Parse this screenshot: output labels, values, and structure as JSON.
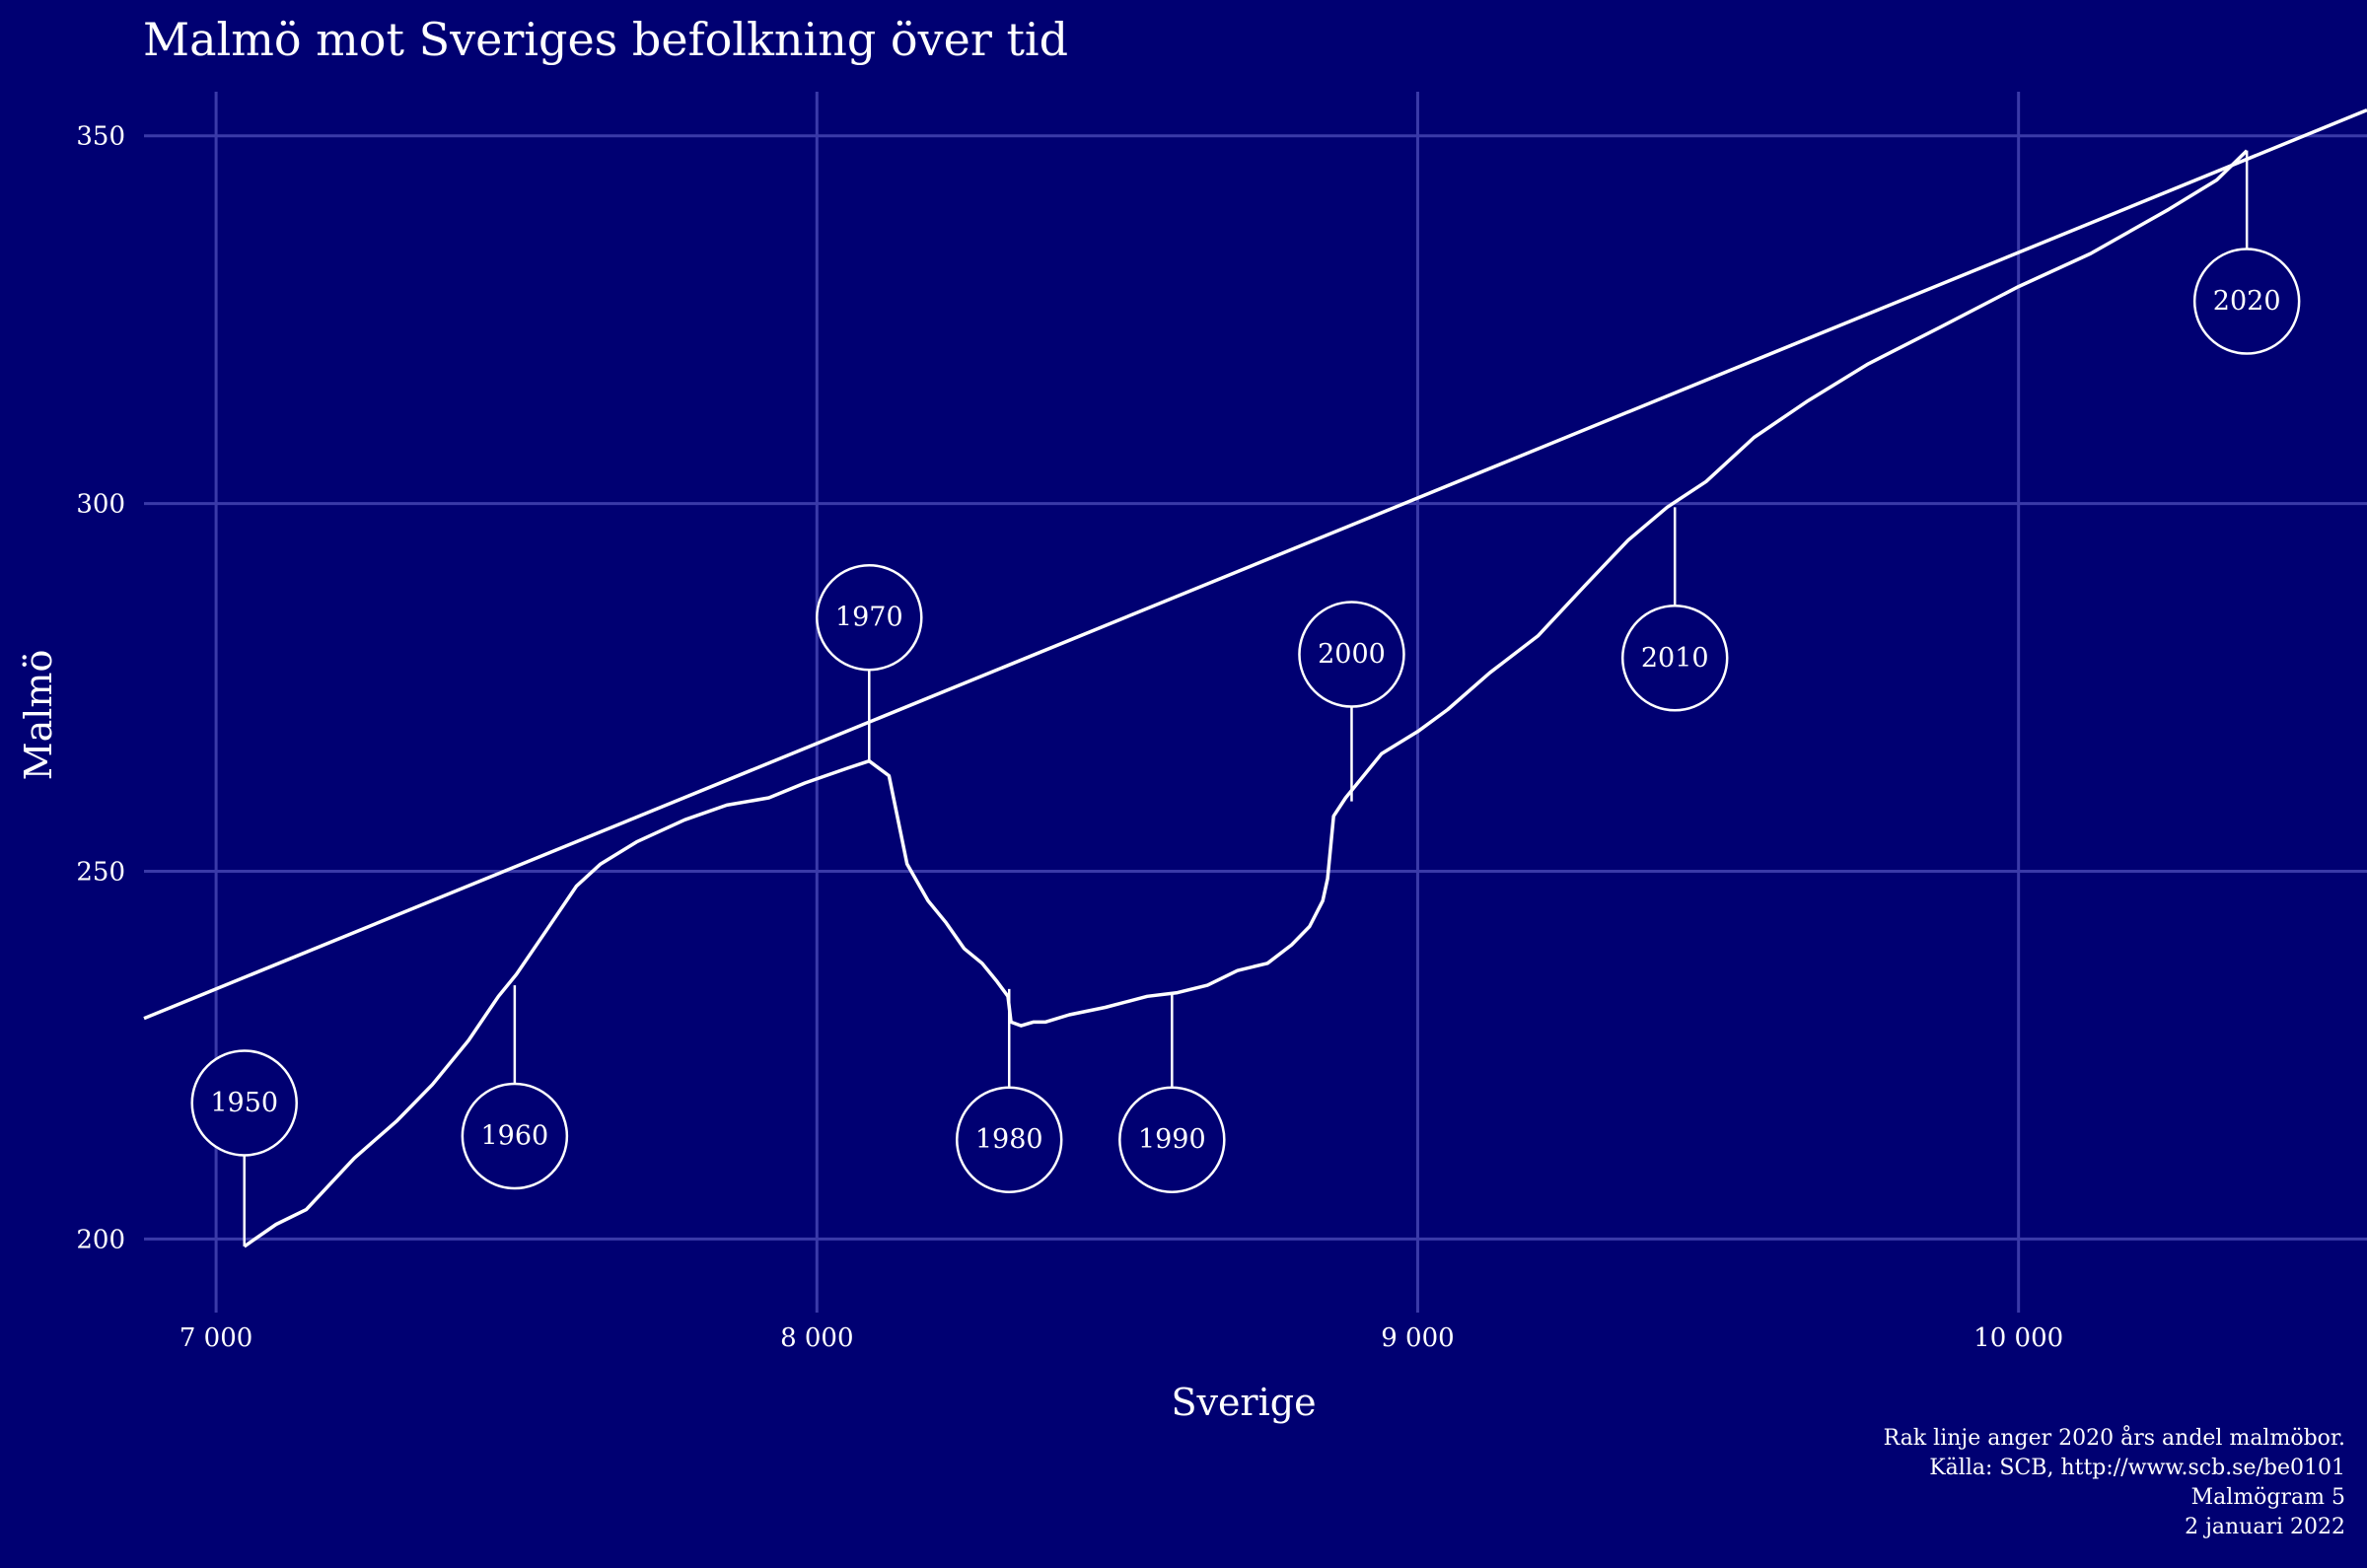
{
  "chart_data": {
    "type": "line",
    "title": "Malmö mot Sveriges befolkning över tid",
    "xlabel": "Sverige",
    "ylabel": "Malmö",
    "xlim": [
      6880,
      10580
    ],
    "ylim": [
      190,
      356
    ],
    "x_ticks": [
      7000,
      8000,
      9000,
      10000
    ],
    "x_tick_labels": [
      "7 000",
      "8 000",
      "9 000",
      "10 000"
    ],
    "y_ticks": [
      200,
      250,
      300,
      350
    ],
    "y_tick_labels": [
      "200",
      "250",
      "300",
      "350"
    ],
    "grid": true,
    "series": [
      {
        "x": [
          7047,
          7100,
          7150,
          7230,
          7300,
          7360,
          7420,
          7470,
          7500,
          7550,
          7600,
          7640,
          7700,
          7780,
          7850,
          7920,
          7980,
          8050,
          8087,
          8120,
          8150,
          8185,
          8215,
          8245,
          8275,
          8300,
          8318,
          8323,
          8340,
          8360,
          8380,
          8420,
          8480,
          8550,
          8600,
          8650,
          8700,
          8750,
          8790,
          8820,
          8842,
          8850,
          8860,
          8880,
          8940,
          9000,
          9050,
          9120,
          9200,
          9280,
          9350,
          9415,
          9480,
          9560,
          9650,
          9750,
          9870,
          10000,
          10120,
          10250,
          10330,
          10380
        ],
        "y": [
          199,
          202,
          204,
          211,
          216,
          221,
          227,
          233,
          236,
          242,
          248,
          251,
          254,
          257,
          259,
          260,
          262,
          264,
          265,
          263,
          251,
          246,
          243,
          239.5,
          237.5,
          235,
          233,
          229.5,
          229,
          229.5,
          229.5,
          230.5,
          231.5,
          233,
          233.5,
          234.5,
          236.5,
          237.5,
          240,
          242.5,
          246,
          249,
          257.5,
          260,
          266,
          269,
          272,
          277,
          282,
          289,
          295,
          299.5,
          303,
          309,
          314,
          319,
          324,
          329.5,
          334,
          340,
          344,
          348
        ]
      }
    ],
    "reference_line": {
      "x": [
        6880,
        10580
      ],
      "y": [
        230,
        353.5
      ]
    },
    "annotations": [
      {
        "label": "1950",
        "x": 7047,
        "y": 199,
        "ly": 218.5
      },
      {
        "label": "1960",
        "x": 7497,
        "y": 234.5,
        "ly": 214
      },
      {
        "label": "1970",
        "x": 8087,
        "y": 265,
        "ly": 284.5
      },
      {
        "label": "1980",
        "x": 8320,
        "y": 234,
        "ly": 213.5
      },
      {
        "label": "1990",
        "x": 8591,
        "y": 233.5,
        "ly": 213.5
      },
      {
        "label": "2000",
        "x": 8890,
        "y": 259.5,
        "ly": 279.5
      },
      {
        "label": "2010",
        "x": 9428,
        "y": 299.5,
        "ly": 279
      },
      {
        "label": "2020",
        "x": 10380,
        "y": 348,
        "ly": 327.5
      }
    ]
  },
  "caption": [
    "Rak linje anger 2020 års andel malmöbor.",
    "Källa: SCB, http://www.scb.se/be0101",
    "Malmögram 5",
    "2 januari 2022"
  ]
}
